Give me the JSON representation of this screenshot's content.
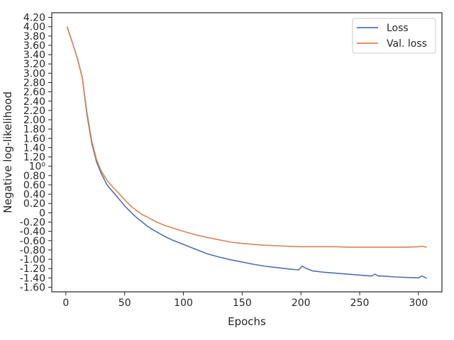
{
  "chart_data": {
    "type": "line",
    "title": "",
    "xlabel": "Epochs",
    "ylabel": "Negative log-likelihood",
    "xlim": [
      -12,
      320
    ],
    "ylim": [
      -1.7,
      4.3
    ],
    "grid": false,
    "legend_position": "top-right",
    "x_ticks": [
      {
        "value": 0,
        "label": "0"
      },
      {
        "value": 50,
        "label": "50"
      },
      {
        "value": 100,
        "label": "100"
      },
      {
        "value": 150,
        "label": "150"
      },
      {
        "value": 200,
        "label": "200"
      },
      {
        "value": 250,
        "label": "250"
      },
      {
        "value": 300,
        "label": "300"
      }
    ],
    "y_ticks": [
      {
        "value": 4.2,
        "label": "4.20"
      },
      {
        "value": 4.0,
        "label": "4.00"
      },
      {
        "value": 3.8,
        "label": "3.80"
      },
      {
        "value": 3.6,
        "label": "3.60"
      },
      {
        "value": 3.4,
        "label": "3.40"
      },
      {
        "value": 3.2,
        "label": "3.20"
      },
      {
        "value": 3.0,
        "label": "3.00"
      },
      {
        "value": 2.8,
        "label": "2.80"
      },
      {
        "value": 2.6,
        "label": "2.60"
      },
      {
        "value": 2.4,
        "label": "2.40"
      },
      {
        "value": 2.2,
        "label": "2.20"
      },
      {
        "value": 2.0,
        "label": "2.00"
      },
      {
        "value": 1.8,
        "label": "1.80"
      },
      {
        "value": 1.6,
        "label": "1.60"
      },
      {
        "value": 1.4,
        "label": "1.40"
      },
      {
        "value": 1.2,
        "label": "1.20"
      },
      {
        "value": 1.0,
        "label": "10⁰"
      },
      {
        "value": 0.8,
        "label": "0.80"
      },
      {
        "value": 0.6,
        "label": "0.60"
      },
      {
        "value": 0.4,
        "label": "0.40"
      },
      {
        "value": 0.2,
        "label": "0.20"
      },
      {
        "value": 0.0,
        "label": "0"
      },
      {
        "value": -0.2,
        "label": "-0.20"
      },
      {
        "value": -0.4,
        "label": "-0.40"
      },
      {
        "value": -0.6,
        "label": "-0.60"
      },
      {
        "value": -0.8,
        "label": "-0.80"
      },
      {
        "value": -1.0,
        "label": "-1.00"
      },
      {
        "value": -1.2,
        "label": "-1.20"
      },
      {
        "value": -1.4,
        "label": "-1.40"
      },
      {
        "value": -1.6,
        "label": "-1.60"
      }
    ],
    "series": [
      {
        "name": "Loss",
        "color": "#4c72b0",
        "x": [
          1,
          5,
          10,
          14,
          18,
          22,
          26,
          30,
          35,
          40,
          45,
          50,
          55,
          60,
          65,
          70,
          75,
          80,
          85,
          90,
          95,
          100,
          110,
          120,
          130,
          140,
          150,
          160,
          170,
          180,
          190,
          198,
          201,
          205,
          210,
          220,
          230,
          240,
          250,
          255,
          260,
          263,
          266,
          270,
          280,
          290,
          300,
          303,
          307
        ],
        "y": [
          4.0,
          3.7,
          3.3,
          2.9,
          2.1,
          1.5,
          1.1,
          0.85,
          0.6,
          0.45,
          0.3,
          0.15,
          0.02,
          -0.1,
          -0.2,
          -0.3,
          -0.38,
          -0.45,
          -0.52,
          -0.58,
          -0.63,
          -0.68,
          -0.78,
          -0.88,
          -0.95,
          -1.01,
          -1.06,
          -1.11,
          -1.15,
          -1.18,
          -1.21,
          -1.23,
          -1.15,
          -1.2,
          -1.25,
          -1.28,
          -1.3,
          -1.32,
          -1.34,
          -1.35,
          -1.36,
          -1.32,
          -1.36,
          -1.36,
          -1.38,
          -1.39,
          -1.4,
          -1.36,
          -1.41
        ]
      },
      {
        "name": "Val. loss",
        "color": "#dd8452",
        "x": [
          1,
          5,
          10,
          14,
          18,
          22,
          26,
          30,
          35,
          40,
          45,
          50,
          55,
          60,
          65,
          70,
          75,
          80,
          85,
          90,
          95,
          100,
          110,
          120,
          130,
          140,
          150,
          160,
          170,
          180,
          190,
          200,
          210,
          220,
          230,
          240,
          250,
          260,
          270,
          280,
          290,
          300,
          303,
          307
        ],
        "y": [
          4.0,
          3.7,
          3.3,
          2.9,
          2.15,
          1.55,
          1.15,
          0.9,
          0.7,
          0.55,
          0.42,
          0.28,
          0.15,
          0.05,
          -0.04,
          -0.1,
          -0.17,
          -0.23,
          -0.28,
          -0.32,
          -0.36,
          -0.4,
          -0.47,
          -0.53,
          -0.58,
          -0.63,
          -0.66,
          -0.68,
          -0.7,
          -0.71,
          -0.72,
          -0.73,
          -0.73,
          -0.73,
          -0.73,
          -0.74,
          -0.74,
          -0.74,
          -0.74,
          -0.74,
          -0.74,
          -0.73,
          -0.72,
          -0.74
        ]
      }
    ]
  }
}
